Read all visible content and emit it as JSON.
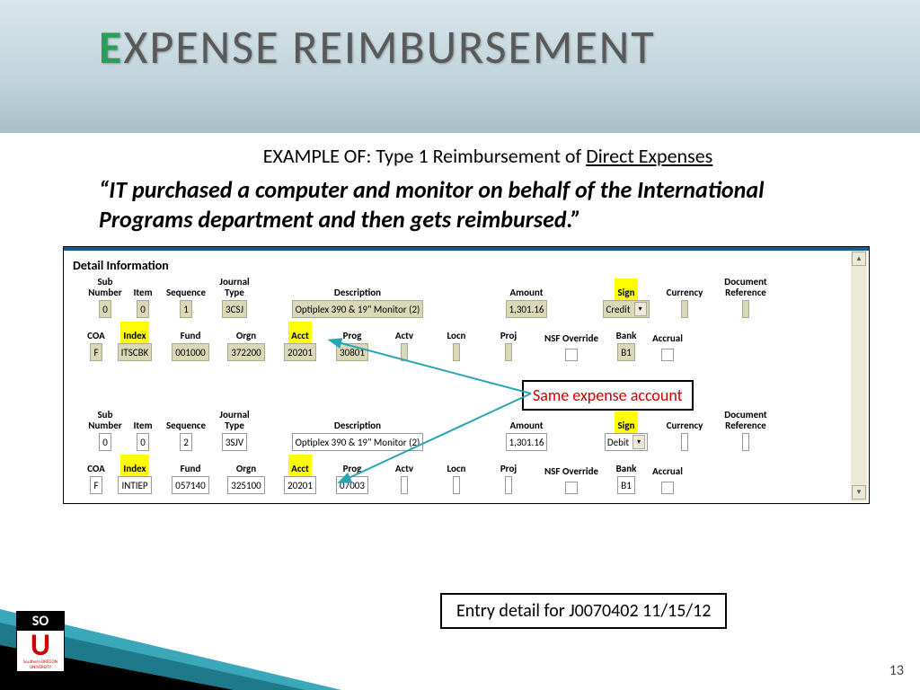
{
  "title": {
    "e": "E",
    "rest": "XPENSE REIMBURSEMENT"
  },
  "example_prefix": "EXAMPLE OF:  Type 1 Reimbursement of ",
  "example_underlined": "Direct Expenses",
  "quote": "“IT purchased a computer and monitor on behalf of the International Programs department and then gets reimbursed.”",
  "detail_title": "Detail Information",
  "callout": "Same expense account",
  "footer": "Entry detail for J0070402 11/15/12",
  "page_num": "13",
  "logo": {
    "so": "SO",
    "u": "U",
    "name": "Southern OREGON UNIVERSITY"
  },
  "headers": {
    "sub_number": "Sub\nNumber",
    "item": "Item",
    "sequence": "Sequence",
    "journal_type": "Journal\nType",
    "description": "Description",
    "amount": "Amount",
    "sign": "Sign",
    "currency": "Currency",
    "doc_ref": "Document\nReference",
    "coa": "COA",
    "index": "Index",
    "fund": "Fund",
    "orgn": "Orgn",
    "acct": "Acct",
    "prog": "Prog",
    "actv": "Actv",
    "locn": "Locn",
    "proj": "Proj",
    "nsf": "NSF Override",
    "bank": "Bank",
    "accrual": "Accrual"
  },
  "grid1": {
    "style": "olive",
    "r1": {
      "sub": "0",
      "item": "0",
      "seq": "1",
      "jtype": "3CSJ",
      "desc": "Optiplex 390 & 19\" Monitor (2)",
      "amount": "1,301.16",
      "sign": "Credit",
      "curr": "",
      "docref": ""
    },
    "r2": {
      "coa": "F",
      "index": "ITSCBK",
      "fund": "001000",
      "orgn": "372200",
      "acct": "20201",
      "prog": "30801",
      "actv": "",
      "locn": "",
      "proj": "",
      "bank": "B1"
    }
  },
  "grid2": {
    "style": "white",
    "r1": {
      "sub": "0",
      "item": "0",
      "seq": "2",
      "jtype": "3SJV",
      "desc": "Optiplex 390 & 19\" Monitor (2)",
      "amount": "1,301.16",
      "sign": "Debit",
      "curr": "",
      "docref": ""
    },
    "r2": {
      "coa": "F",
      "index": "INTIEP",
      "fund": "057140",
      "orgn": "325100",
      "acct": "20201",
      "prog": "07003",
      "actv": "",
      "locn": "",
      "proj": "",
      "bank": "B1"
    }
  },
  "widths": {
    "sub": 40,
    "item": 36,
    "seq": 52,
    "jtype": 48,
    "desc": 218,
    "amount": 150,
    "sign": 64,
    "curr": 58,
    "docref": 70,
    "coa": 20,
    "index": 58,
    "fund": 58,
    "orgn": 58,
    "acct": 54,
    "prog": 54,
    "actv": 54,
    "locn": 54,
    "proj": 54,
    "nsf": 78,
    "bank": 36,
    "accrual": 48
  },
  "colors": {
    "olive_bg": "#d9d9b8",
    "olive_border": "#a8a88c",
    "highlight": "#ffff00",
    "title_gradient_top": "#d8e5ec",
    "title_gradient_bot": "#a8bfc8",
    "teal": "#2aa3b5",
    "red": "#d00000"
  }
}
